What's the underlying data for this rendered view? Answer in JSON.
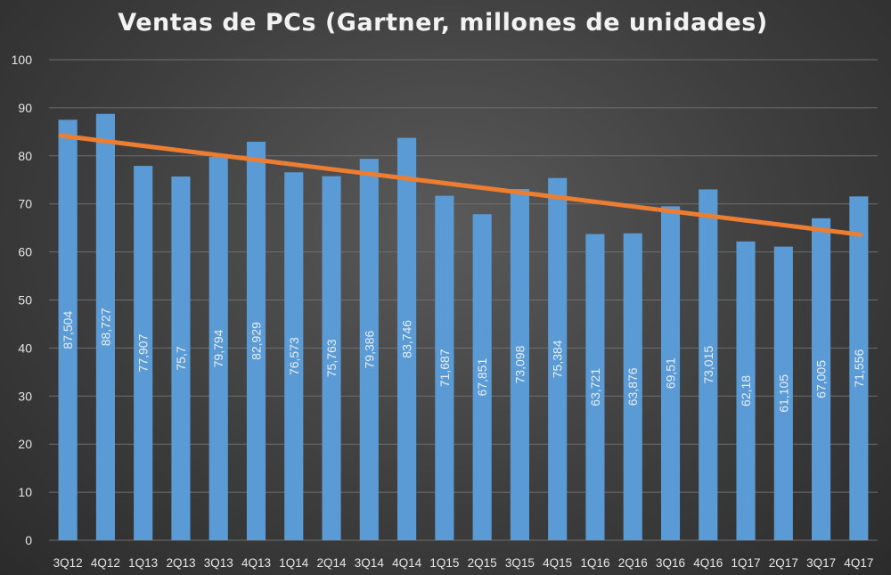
{
  "chart_data": {
    "type": "bar",
    "title": "Ventas de PCs (Gartner, millones de unidades)",
    "xlabel": "",
    "ylabel": "",
    "ylim": [
      0,
      100
    ],
    "yticks": [
      "0",
      "10",
      "20",
      "30",
      "40",
      "50",
      "60",
      "70",
      "80",
      "90",
      "100"
    ],
    "grid": true,
    "legend": "none",
    "categories": [
      "3Q12",
      "4Q12",
      "1Q13",
      "2Q13",
      "3Q13",
      "4Q13",
      "1Q14",
      "2Q14",
      "3Q14",
      "4Q14",
      "1Q15",
      "2Q15",
      "3Q15",
      "4Q15",
      "1Q16",
      "2Q16",
      "3Q16",
      "4Q16",
      "1Q17",
      "2Q17",
      "3Q17",
      "4Q17"
    ],
    "values": [
      87.504,
      88.727,
      77.907,
      75.7,
      79.794,
      82.929,
      76.573,
      75.763,
      79.386,
      83.746,
      71.687,
      67.851,
      73.098,
      75.384,
      63.721,
      63.876,
      69.51,
      73.015,
      62.18,
      61.105,
      67.005,
      71.556
    ],
    "data_labels": [
      "87,504",
      "88,727",
      "77,907",
      "75,7",
      "79,794",
      "82,929",
      "76,573",
      "75,763",
      "79,386",
      "83,746",
      "71,687",
      "67,851",
      "73,098",
      "75,384",
      "63,721",
      "63,876",
      "69,51",
      "73,015",
      "62,18",
      "61,105",
      "67,005",
      "71,556"
    ],
    "trendline": {
      "type": "linear",
      "start": 84.2,
      "end": 63.6
    },
    "colors": {
      "bar": "#5b9bd5",
      "trend": "#ed7d31",
      "grid": "#6e6e6e",
      "text": "#e6e6e6"
    }
  }
}
